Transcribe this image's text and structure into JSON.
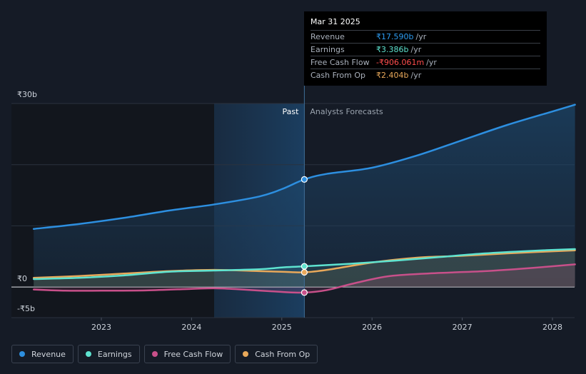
{
  "chart_data": {
    "type": "line",
    "x_ticks": [
      "2023",
      "2024",
      "2025",
      "2026",
      "2027",
      "2028"
    ],
    "y_ticks": [
      "₹30b",
      "₹0",
      "-₹5b"
    ],
    "ylim": [
      -5,
      30
    ],
    "xlim": [
      2022.25,
      2028.25
    ],
    "past_label": "Past",
    "forecast_label": "Analysts Forecasts",
    "divider_x": 2025.25,
    "past_shade_start": 2024.25,
    "series": [
      {
        "name": "Revenue",
        "color": "#2d8fe0",
        "points": [
          [
            2022.25,
            9.5
          ],
          [
            2022.75,
            10.3
          ],
          [
            2023.25,
            11.3
          ],
          [
            2023.75,
            12.5
          ],
          [
            2024.25,
            13.5
          ],
          [
            2024.75,
            14.8
          ],
          [
            2025.0,
            16.0
          ],
          [
            2025.25,
            17.59
          ],
          [
            2025.5,
            18.5
          ],
          [
            2026.0,
            19.5
          ],
          [
            2026.5,
            21.5
          ],
          [
            2027.0,
            24.0
          ],
          [
            2027.5,
            26.5
          ],
          [
            2028.0,
            28.7
          ],
          [
            2028.25,
            29.8
          ]
        ]
      },
      {
        "name": "Earnings",
        "color": "#5ee3d0",
        "points": [
          [
            2022.25,
            1.3
          ],
          [
            2022.75,
            1.5
          ],
          [
            2023.25,
            1.9
          ],
          [
            2023.75,
            2.5
          ],
          [
            2024.25,
            2.7
          ],
          [
            2024.75,
            2.9
          ],
          [
            2025.0,
            3.2
          ],
          [
            2025.25,
            3.386
          ],
          [
            2025.75,
            3.8
          ],
          [
            2026.25,
            4.3
          ],
          [
            2026.75,
            4.9
          ],
          [
            2027.25,
            5.5
          ],
          [
            2027.75,
            5.9
          ],
          [
            2028.25,
            6.2
          ]
        ]
      },
      {
        "name": "Free Cash Flow",
        "color": "#c8508a",
        "points": [
          [
            2022.25,
            -0.4
          ],
          [
            2022.6,
            -0.6
          ],
          [
            2023.0,
            -0.6
          ],
          [
            2023.5,
            -0.55
          ],
          [
            2024.0,
            -0.3
          ],
          [
            2024.25,
            -0.2
          ],
          [
            2024.5,
            -0.35
          ],
          [
            2025.0,
            -0.8
          ],
          [
            2025.25,
            -0.906
          ],
          [
            2025.5,
            -0.5
          ],
          [
            2025.8,
            0.6
          ],
          [
            2026.2,
            1.8
          ],
          [
            2026.75,
            2.3
          ],
          [
            2027.25,
            2.6
          ],
          [
            2027.75,
            3.1
          ],
          [
            2028.25,
            3.7
          ]
        ]
      },
      {
        "name": "Cash From Op",
        "color": "#e8a85a",
        "points": [
          [
            2022.25,
            1.5
          ],
          [
            2022.75,
            1.8
          ],
          [
            2023.25,
            2.2
          ],
          [
            2023.75,
            2.6
          ],
          [
            2024.25,
            2.8
          ],
          [
            2024.75,
            2.6
          ],
          [
            2025.0,
            2.5
          ],
          [
            2025.25,
            2.404
          ],
          [
            2025.5,
            2.8
          ],
          [
            2026.0,
            4.0
          ],
          [
            2026.5,
            4.8
          ],
          [
            2027.0,
            5.1
          ],
          [
            2027.5,
            5.5
          ],
          [
            2028.25,
            6.0
          ]
        ]
      }
    ]
  },
  "tooltip": {
    "date": "Mar 31 2025",
    "rows": [
      {
        "label": "Revenue",
        "value": "₹17.590b",
        "unit": "/yr",
        "color": "#2d9bf0"
      },
      {
        "label": "Earnings",
        "value": "₹3.386b",
        "unit": "/yr",
        "color": "#5ee3d0"
      },
      {
        "label": "Free Cash Flow",
        "value": "-₹906.061m",
        "unit": "/yr",
        "color": "#ff4d4d"
      },
      {
        "label": "Cash From Op",
        "value": "₹2.404b",
        "unit": "/yr",
        "color": "#e8a85a"
      }
    ]
  },
  "legend": [
    {
      "label": "Revenue",
      "color": "#2d8fe0"
    },
    {
      "label": "Earnings",
      "color": "#5ee3d0"
    },
    {
      "label": "Free Cash Flow",
      "color": "#c8508a"
    },
    {
      "label": "Cash From Op",
      "color": "#e8a85a"
    }
  ]
}
